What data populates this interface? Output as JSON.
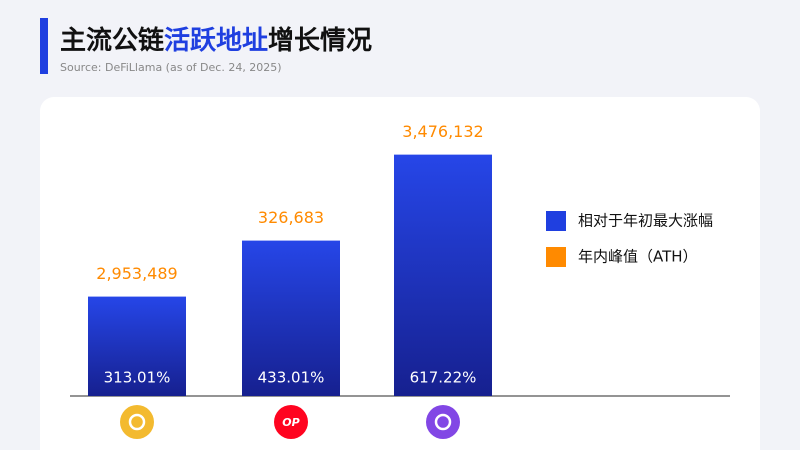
{
  "title_parts": [
    "主流公链",
    "活跃地址",
    "增长情况"
  ],
  "source": "Source: DeFiLlama (as of Dec. 24, 2025)",
  "chart_data": {
    "type": "bar",
    "categories": [
      null,
      "OP",
      null
    ],
    "series": [
      {
        "name": "相对于年初最大涨幅",
        "color": "#1f3fe0",
        "values": [
          313.01,
          433.01,
          617.22
        ],
        "value_labels": [
          "313.01%",
          "433.01%",
          "617.22%"
        ]
      },
      {
        "name": "年内峰值（ATH）",
        "color": "#ff8a00",
        "values": [
          2953489,
          326683,
          3476132
        ],
        "value_labels": [
          "2,953,489",
          "326,683",
          "3,476,132"
        ]
      }
    ],
    "ylim": [
      100,
      700
    ],
    "legend": "right"
  }
}
